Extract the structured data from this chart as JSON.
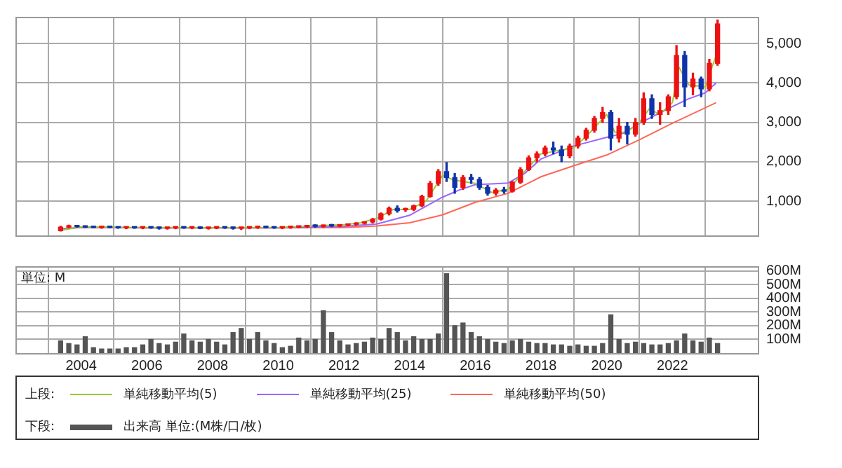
{
  "chart_data": [
    {
      "type": "candlestick",
      "xlim": [
        2002,
        2024.6
      ],
      "xticks": [
        2004,
        2006,
        2008,
        2010,
        2012,
        2014,
        2016,
        2018,
        2020,
        2022
      ],
      "ylim": [
        130,
        5680
      ],
      "yticks": [
        {
          "value": 1000,
          "label": "1,000"
        },
        {
          "value": 2000,
          "label": "2,000"
        },
        {
          "value": 3000,
          "label": "3,000"
        },
        {
          "value": 4000,
          "label": "4,000"
        },
        {
          "value": 5000,
          "label": "5,000"
        }
      ],
      "tick_labels": "y",
      "grid": true,
      "legend": "bottom",
      "annotations": [
        "上段:"
      ],
      "x": [
        2003.375,
        2003.625,
        2003.875,
        2004.125,
        2004.375,
        2004.625,
        2004.875,
        2005.125,
        2005.375,
        2005.625,
        2005.875,
        2006.125,
        2006.375,
        2006.625,
        2006.875,
        2007.125,
        2007.375,
        2007.625,
        2007.875,
        2008.125,
        2008.375,
        2008.625,
        2008.875,
        2009.125,
        2009.375,
        2009.625,
        2009.875,
        2010.125,
        2010.375,
        2010.625,
        2010.875,
        2011.125,
        2011.375,
        2011.625,
        2011.875,
        2012.125,
        2012.375,
        2012.625,
        2012.875,
        2013.125,
        2013.375,
        2013.625,
        2013.875,
        2014.125,
        2014.375,
        2014.625,
        2014.875,
        2015.125,
        2015.375,
        2015.625,
        2015.875,
        2016.125,
        2016.375,
        2016.625,
        2016.875,
        2017.125,
        2017.375,
        2017.625,
        2017.875,
        2018.125,
        2018.375,
        2018.625,
        2018.875,
        2019.125,
        2019.375,
        2019.625,
        2019.875,
        2020.125,
        2020.375,
        2020.625,
        2020.875,
        2021.125,
        2021.375,
        2021.625,
        2021.875,
        2022.125,
        2022.375,
        2022.625,
        2022.875,
        2023.125,
        2023.375
      ],
      "ohlc": [
        [
          250,
          360,
          240,
          340
        ],
        [
          340,
          390,
          320,
          370
        ],
        [
          370,
          380,
          340,
          350
        ],
        [
          350,
          370,
          330,
          340
        ],
        [
          340,
          360,
          320,
          330
        ],
        [
          330,
          350,
          310,
          340
        ],
        [
          340,
          360,
          320,
          330
        ],
        [
          330,
          350,
          310,
          320
        ],
        [
          320,
          340,
          300,
          330
        ],
        [
          330,
          350,
          310,
          320
        ],
        [
          320,
          340,
          300,
          330
        ],
        [
          330,
          350,
          310,
          320
        ],
        [
          320,
          340,
          290,
          310
        ],
        [
          310,
          330,
          290,
          320
        ],
        [
          320,
          340,
          300,
          330
        ],
        [
          330,
          350,
          310,
          320
        ],
        [
          320,
          340,
          300,
          330
        ],
        [
          330,
          350,
          300,
          310
        ],
        [
          310,
          330,
          290,
          320
        ],
        [
          320,
          340,
          300,
          330
        ],
        [
          330,
          350,
          310,
          320
        ],
        [
          320,
          340,
          290,
          310
        ],
        [
          310,
          330,
          280,
          320
        ],
        [
          320,
          340,
          300,
          330
        ],
        [
          330,
          350,
          310,
          340
        ],
        [
          340,
          360,
          320,
          330
        ],
        [
          330,
          350,
          310,
          320
        ],
        [
          320,
          340,
          300,
          330
        ],
        [
          330,
          350,
          310,
          340
        ],
        [
          340,
          360,
          320,
          350
        ],
        [
          350,
          380,
          330,
          370
        ],
        [
          370,
          400,
          340,
          360
        ],
        [
          360,
          390,
          340,
          380
        ],
        [
          380,
          410,
          350,
          370
        ],
        [
          370,
          400,
          350,
          390
        ],
        [
          390,
          420,
          370,
          410
        ],
        [
          410,
          450,
          390,
          440
        ],
        [
          440,
          480,
          420,
          470
        ],
        [
          470,
          560,
          450,
          540
        ],
        [
          540,
          700,
          520,
          680
        ],
        [
          680,
          850,
          650,
          820
        ],
        [
          820,
          880,
          720,
          760
        ],
        [
          780,
          820,
          740,
          790
        ],
        [
          790,
          900,
          760,
          880
        ],
        [
          880,
          1150,
          860,
          1120
        ],
        [
          1120,
          1500,
          1100,
          1450
        ],
        [
          1450,
          1800,
          1400,
          1750
        ],
        [
          1750,
          1980,
          1500,
          1600
        ],
        [
          1600,
          1700,
          1200,
          1350
        ],
        [
          1350,
          1650,
          1300,
          1600
        ],
        [
          1600,
          1680,
          1450,
          1550
        ],
        [
          1550,
          1600,
          1300,
          1350
        ],
        [
          1350,
          1400,
          1150,
          1200
        ],
        [
          1200,
          1320,
          1150,
          1280
        ],
        [
          1280,
          1350,
          1200,
          1250
        ],
        [
          1250,
          1500,
          1230,
          1480
        ],
        [
          1480,
          1850,
          1450,
          1800
        ],
        [
          1800,
          2150,
          1780,
          2100
        ],
        [
          2100,
          2250,
          2000,
          2200
        ],
        [
          2200,
          2400,
          2150,
          2350
        ],
        [
          2350,
          2500,
          2200,
          2300
        ],
        [
          2300,
          2400,
          2000,
          2150
        ],
        [
          2150,
          2450,
          2100,
          2400
        ],
        [
          2400,
          2650,
          2350,
          2600
        ],
        [
          2600,
          2850,
          2550,
          2800
        ],
        [
          2800,
          3150,
          2750,
          3100
        ],
        [
          3100,
          3380,
          3000,
          3250
        ],
        [
          3250,
          3300,
          2300,
          2600
        ],
        [
          2600,
          3100,
          2500,
          2900
        ],
        [
          2900,
          3000,
          2450,
          2700
        ],
        [
          2700,
          3100,
          2650,
          3000
        ],
        [
          3000,
          3750,
          2950,
          3600
        ],
        [
          3600,
          3700,
          3100,
          3200
        ],
        [
          3200,
          3500,
          2950,
          3300
        ],
        [
          3300,
          3700,
          3200,
          3650
        ],
        [
          3650,
          4950,
          3600,
          4700
        ],
        [
          4700,
          4800,
          3400,
          3900
        ],
        [
          3900,
          4250,
          3700,
          4100
        ],
        [
          4100,
          4150,
          3650,
          3850
        ],
        [
          3850,
          4600,
          3800,
          4500
        ],
        [
          4500,
          5600,
          4450,
          5500
        ]
      ],
      "colors": [
        "#ee1111",
        "#ee1111",
        "#1133aa",
        "#1133aa",
        "#1133aa",
        "#ee1111",
        "#1133aa",
        "#1133aa",
        "#ee1111",
        "#1133aa",
        "#ee1111",
        "#1133aa",
        "#1133aa",
        "#ee1111",
        "#ee1111",
        "#1133aa",
        "#ee1111",
        "#1133aa",
        "#ee1111",
        "#ee1111",
        "#1133aa",
        "#1133aa",
        "#ee1111",
        "#ee1111",
        "#ee1111",
        "#1133aa",
        "#1133aa",
        "#ee1111",
        "#ee1111",
        "#ee1111",
        "#ee1111",
        "#1133aa",
        "#ee1111",
        "#1133aa",
        "#ee1111",
        "#ee1111",
        "#ee1111",
        "#ee1111",
        "#ee1111",
        "#ee1111",
        "#ee1111",
        "#1133aa",
        "#ee1111",
        "#ee1111",
        "#ee1111",
        "#ee1111",
        "#ee1111",
        "#1133aa",
        "#1133aa",
        "#ee1111",
        "#1133aa",
        "#1133aa",
        "#1133aa",
        "#ee1111",
        "#1133aa",
        "#ee1111",
        "#ee1111",
        "#ee1111",
        "#ee1111",
        "#ee1111",
        "#1133aa",
        "#1133aa",
        "#ee1111",
        "#ee1111",
        "#ee1111",
        "#ee1111",
        "#ee1111",
        "#1133aa",
        "#ee1111",
        "#1133aa",
        "#ee1111",
        "#ee1111",
        "#1133aa",
        "#ee1111",
        "#ee1111",
        "#ee1111",
        "#1133aa",
        "#ee1111",
        "#1133aa",
        "#ee1111",
        "#ee1111"
      ],
      "series": [
        {
          "type": "line",
          "name": "単純移動平均(5)",
          "color": "#99cc33",
          "x": [
            2003.4,
            2004,
            2005,
            2006,
            2007,
            2008,
            2009,
            2010,
            2011,
            2012,
            2012.5,
            2013,
            2013.5,
            2014,
            2014.5,
            2015,
            2015.3,
            2015.6,
            2016,
            2016.5,
            2017,
            2017.5,
            2018,
            2018.5,
            2019,
            2019.5,
            2020,
            2020.25,
            2020.6,
            2021,
            2021.3,
            2021.6,
            2022,
            2022.2,
            2022.5,
            2023,
            2023.33
          ],
          "values": [
            260,
            350,
            340,
            330,
            330,
            320,
            330,
            330,
            370,
            400,
            450,
            560,
            790,
            790,
            1000,
            1650,
            1550,
            1500,
            1450,
            1220,
            1300,
            1750,
            2200,
            2280,
            2350,
            2750,
            3200,
            2750,
            2750,
            3000,
            3350,
            3200,
            3500,
            4400,
            3950,
            3900,
            4700
          ]
        },
        {
          "type": "line",
          "name": "単純移動平均(25)",
          "color": "#9966ff",
          "x": [
            2003.4,
            2004,
            2006,
            2008,
            2010,
            2011,
            2012,
            2013,
            2014,
            2015,
            2015.5,
            2016,
            2016.6,
            2017,
            2017.5,
            2018,
            2019,
            2020,
            2020.5,
            2021,
            2022,
            2022.5,
            2023,
            2023.33
          ],
          "values": [
            280,
            340,
            320,
            320,
            320,
            340,
            360,
            420,
            640,
            1100,
            1280,
            1420,
            1440,
            1460,
            1700,
            2070,
            2400,
            2620,
            2720,
            2980,
            3400,
            3600,
            3750,
            4000
          ]
        },
        {
          "type": "line",
          "name": "単純移動平均(50)",
          "color": "#ff6655",
          "x": [
            2003.4,
            2004,
            2006,
            2008,
            2010,
            2012,
            2013,
            2014,
            2015,
            2016,
            2017,
            2018,
            2019,
            2020,
            2021,
            2022,
            2023.33
          ],
          "values": [
            300,
            330,
            320,
            320,
            320,
            330,
            370,
            450,
            650,
            970,
            1200,
            1620,
            1900,
            2170,
            2560,
            2980,
            3500
          ]
        }
      ]
    },
    {
      "type": "bar",
      "xlim": [
        2002,
        2024.6
      ],
      "xticks": [
        2004,
        2006,
        2008,
        2010,
        2012,
        2014,
        2016,
        2018,
        2020,
        2022
      ],
      "ylim": [
        0,
        635
      ],
      "yticks": [
        {
          "value": 100,
          "label": "100M"
        },
        {
          "value": 200,
          "label": "200M"
        },
        {
          "value": 300,
          "label": "300M"
        },
        {
          "value": 400,
          "label": "400M"
        },
        {
          "value": 500,
          "label": "500M"
        },
        {
          "value": 600,
          "label": "600M"
        }
      ],
      "ylabel": "単位: M",
      "grid": true,
      "legend": "bottom",
      "annotations": [
        "下段:"
      ],
      "x": [
        2003.375,
        2003.625,
        2003.875,
        2004.125,
        2004.375,
        2004.625,
        2004.875,
        2005.125,
        2005.375,
        2005.625,
        2005.875,
        2006.125,
        2006.375,
        2006.625,
        2006.875,
        2007.125,
        2007.375,
        2007.625,
        2007.875,
        2008.125,
        2008.375,
        2008.625,
        2008.875,
        2009.125,
        2009.375,
        2009.625,
        2009.875,
        2010.125,
        2010.375,
        2010.625,
        2010.875,
        2011.125,
        2011.375,
        2011.625,
        2011.875,
        2012.125,
        2012.375,
        2012.625,
        2012.875,
        2013.125,
        2013.375,
        2013.625,
        2013.875,
        2014.125,
        2014.375,
        2014.625,
        2014.875,
        2015.125,
        2015.375,
        2015.625,
        2015.875,
        2016.125,
        2016.375,
        2016.625,
        2016.875,
        2017.125,
        2017.375,
        2017.625,
        2017.875,
        2018.125,
        2018.375,
        2018.625,
        2018.875,
        2019.125,
        2019.375,
        2019.625,
        2019.875,
        2020.125,
        2020.375,
        2020.625,
        2020.875,
        2021.125,
        2021.375,
        2021.625,
        2021.875,
        2022.125,
        2022.375,
        2022.625,
        2022.875,
        2023.125,
        2023.375
      ],
      "series": [
        {
          "name": "出来高 単位:(M株/口/枚)",
          "color": "#555555",
          "values": [
            90,
            70,
            60,
            120,
            40,
            30,
            30,
            30,
            40,
            40,
            60,
            100,
            70,
            60,
            80,
            140,
            90,
            80,
            100,
            80,
            60,
            150,
            180,
            100,
            150,
            90,
            70,
            40,
            50,
            110,
            90,
            100,
            310,
            150,
            90,
            60,
            70,
            80,
            110,
            100,
            180,
            150,
            90,
            120,
            100,
            100,
            140,
            580,
            200,
            220,
            150,
            120,
            100,
            80,
            70,
            90,
            100,
            80,
            70,
            70,
            60,
            60,
            50,
            60,
            50,
            50,
            70,
            280,
            100,
            70,
            80,
            70,
            60,
            60,
            70,
            90,
            140,
            90,
            80,
            110,
            70
          ]
        }
      ]
    }
  ]
}
